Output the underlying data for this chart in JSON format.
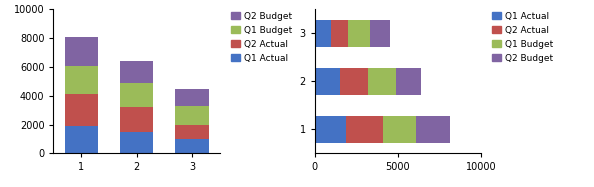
{
  "col_categories": [
    1,
    2,
    3
  ],
  "col_q1_actual": [
    1900,
    1500,
    1000
  ],
  "col_q2_actual": [
    2200,
    1700,
    1000
  ],
  "col_q1_budget": [
    2000,
    1700,
    1300
  ],
  "col_q2_budget": [
    2000,
    1500,
    1200
  ],
  "bar_q1_actual": [
    1900,
    1500,
    1000
  ],
  "bar_q2_actual": [
    2200,
    1700,
    1000
  ],
  "bar_q1_budget": [
    2000,
    1700,
    1300
  ],
  "bar_q2_budget": [
    2000,
    1500,
    1200
  ],
  "color_q1_actual": "#4472C4",
  "color_q2_actual": "#C0504D",
  "color_q1_budget": "#9BBB59",
  "color_q2_budget": "#8064A2",
  "col_ylim": [
    0,
    10000
  ],
  "col_yticks": [
    0,
    2000,
    4000,
    6000,
    8000,
    10000
  ],
  "bar_xlim": [
    0,
    10000
  ],
  "bar_xticks": [
    0,
    5000,
    10000
  ],
  "background_color": "#FFFFFF",
  "left_legend_labels": [
    "Q2 Budget",
    "Q1 Budget",
    "Q2 Actual",
    "Q1 Actual"
  ],
  "right_legend_labels": [
    "Q1 Actual",
    "Q2 Actual",
    "Q1 Budget",
    "Q2 Budget"
  ]
}
